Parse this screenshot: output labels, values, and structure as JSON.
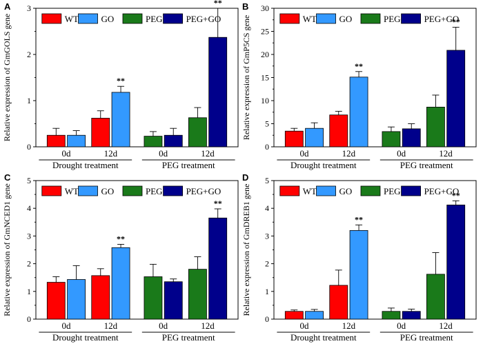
{
  "figure": {
    "legend_labels": [
      "WT",
      "GO",
      "PEG",
      "PEG+GO"
    ],
    "group_labels": [
      "Drought treatment",
      "PEG treatment"
    ],
    "time_labels": [
      "0d",
      "12d"
    ],
    "significance_marker": "**"
  },
  "colors": {
    "WT": "#ff0000",
    "GO": "#3399ff",
    "PEG": "#1a7a1a",
    "PEG+GO": "#00008b"
  },
  "chart_data": [
    {
      "type": "bar",
      "panel": "A",
      "ylabel": "Relative expression of GmGOLS gene",
      "ylim": [
        0,
        3
      ],
      "yticks": [
        0,
        1,
        2,
        3
      ],
      "categories": [
        "0d",
        "12d",
        "0d",
        "12d"
      ],
      "groups": [
        "Drought treatment",
        "PEG treatment"
      ],
      "series": [
        {
          "name": "WT",
          "values": [
            0.25,
            0.62,
            null,
            null
          ],
          "errors": [
            0.15,
            0.16,
            null,
            null
          ]
        },
        {
          "name": "GO",
          "values": [
            0.25,
            1.18,
            null,
            null
          ],
          "errors": [
            0.1,
            0.13,
            null,
            null
          ]
        },
        {
          "name": "PEG",
          "values": [
            null,
            null,
            0.23,
            0.63
          ],
          "errors": [
            null,
            null,
            0.1,
            0.22
          ]
        },
        {
          "name": "PEG+GO",
          "values": [
            null,
            null,
            0.25,
            2.37
          ],
          "errors": [
            null,
            null,
            0.15,
            0.63
          ]
        }
      ],
      "significant": [
        {
          "series": "GO",
          "index": 1
        },
        {
          "series": "PEG+GO",
          "index": 3
        }
      ]
    },
    {
      "type": "bar",
      "panel": "B",
      "ylabel": "Relative expression of GmP5CS gene",
      "ylim": [
        0,
        30
      ],
      "yticks": [
        0,
        5,
        10,
        15,
        20,
        25,
        30
      ],
      "categories": [
        "0d",
        "12d",
        "0d",
        "12d"
      ],
      "groups": [
        "Drought treatment",
        "PEG treatment"
      ],
      "series": [
        {
          "name": "WT",
          "values": [
            3.4,
            6.9,
            null,
            null
          ],
          "errors": [
            0.6,
            0.8,
            null,
            null
          ]
        },
        {
          "name": "GO",
          "values": [
            4.0,
            15.1,
            null,
            null
          ],
          "errors": [
            1.2,
            1.2,
            null,
            null
          ]
        },
        {
          "name": "PEG",
          "values": [
            null,
            null,
            3.3,
            8.6
          ],
          "errors": [
            null,
            null,
            1.0,
            2.6
          ]
        },
        {
          "name": "PEG+GO",
          "values": [
            null,
            null,
            3.9,
            20.9
          ],
          "errors": [
            null,
            null,
            1.1,
            5.0
          ]
        }
      ],
      "significant": [
        {
          "series": "GO",
          "index": 1
        },
        {
          "series": "PEG+GO",
          "index": 3
        }
      ]
    },
    {
      "type": "bar",
      "panel": "C",
      "ylabel": "Relative expression of GmNCED1 gene",
      "ylim": [
        0,
        5
      ],
      "yticks": [
        0,
        1,
        2,
        3,
        4,
        5
      ],
      "categories": [
        "0d",
        "12d",
        "0d",
        "12d"
      ],
      "groups": [
        "Drought treatment",
        "PEG treatment"
      ],
      "series": [
        {
          "name": "WT",
          "values": [
            1.33,
            1.57,
            null,
            null
          ],
          "errors": [
            0.2,
            0.25,
            null,
            null
          ]
        },
        {
          "name": "GO",
          "values": [
            1.43,
            2.58,
            null,
            null
          ],
          "errors": [
            0.5,
            0.12,
            null,
            null
          ]
        },
        {
          "name": "PEG",
          "values": [
            null,
            null,
            1.53,
            1.8
          ],
          "errors": [
            null,
            null,
            0.45,
            0.45
          ]
        },
        {
          "name": "PEG+GO",
          "values": [
            null,
            null,
            1.35,
            3.65
          ],
          "errors": [
            null,
            null,
            0.1,
            0.33
          ]
        }
      ],
      "significant": [
        {
          "series": "GO",
          "index": 1
        },
        {
          "series": "PEG+GO",
          "index": 3
        }
      ]
    },
    {
      "type": "bar",
      "panel": "D",
      "ylabel": "Relative expression of GmDREB1 gene",
      "ylim": [
        0,
        5
      ],
      "yticks": [
        0,
        1,
        2,
        3,
        4,
        5
      ],
      "categories": [
        "0d",
        "12d",
        "0d",
        "12d"
      ],
      "groups": [
        "Drought treatment",
        "PEG treatment"
      ],
      "series": [
        {
          "name": "WT",
          "values": [
            0.28,
            1.22,
            null,
            null
          ],
          "errors": [
            0.05,
            0.55,
            null,
            null
          ]
        },
        {
          "name": "GO",
          "values": [
            0.28,
            3.2,
            null,
            null
          ],
          "errors": [
            0.07,
            0.2,
            null,
            null
          ]
        },
        {
          "name": "PEG",
          "values": [
            null,
            null,
            0.28,
            1.62
          ],
          "errors": [
            null,
            null,
            0.12,
            0.78
          ]
        },
        {
          "name": "PEG+GO",
          "values": [
            null,
            null,
            0.28,
            4.12
          ],
          "errors": [
            null,
            null,
            0.08,
            0.15
          ]
        }
      ],
      "significant": [
        {
          "series": "GO",
          "index": 1
        },
        {
          "series": "PEG+GO",
          "index": 3
        }
      ]
    }
  ]
}
